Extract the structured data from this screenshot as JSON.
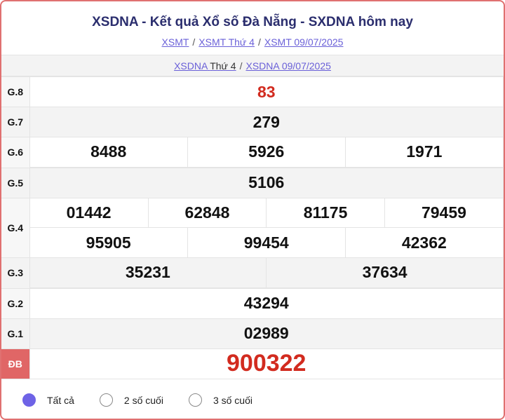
{
  "header": {
    "title": "XSDNA - Kết quả Xổ số Đà Nẵng - SXDNA hôm nay",
    "breadcrumbs": [
      "XSMT",
      "XSMT Thứ 4",
      "XSMT 09/07/2025"
    ],
    "sub_links": {
      "first_link": "XSDNA",
      "first_suffix": "Thứ 4",
      "second": "XSDNA 09/07/2025"
    }
  },
  "separator": "/",
  "results": {
    "g8": {
      "label": "G.8",
      "values": [
        "83"
      ]
    },
    "g7": {
      "label": "G.7",
      "values": [
        "279"
      ]
    },
    "g6": {
      "label": "G.6",
      "values": [
        "8488",
        "5926",
        "1971"
      ]
    },
    "g5": {
      "label": "G.5",
      "values": [
        "5106"
      ]
    },
    "g4": {
      "label": "G.4",
      "values": [
        "01442",
        "62848",
        "81175",
        "79459",
        "95905",
        "99454",
        "42362"
      ]
    },
    "g3": {
      "label": "G.3",
      "values": [
        "35231",
        "37634"
      ]
    },
    "g2": {
      "label": "G.2",
      "values": [
        "43294"
      ]
    },
    "g1": {
      "label": "G.1",
      "values": [
        "02989"
      ]
    },
    "db": {
      "label": "ĐB",
      "values": [
        "900322"
      ]
    }
  },
  "filters": [
    {
      "label": "Tất cả",
      "selected": true
    },
    {
      "label": "2 số cuối",
      "selected": false
    },
    {
      "label": "3 số cuối",
      "selected": false
    }
  ],
  "colors": {
    "accent": "#6e63e6",
    "prize_red": "#d22b1f",
    "border": "#e06666"
  }
}
